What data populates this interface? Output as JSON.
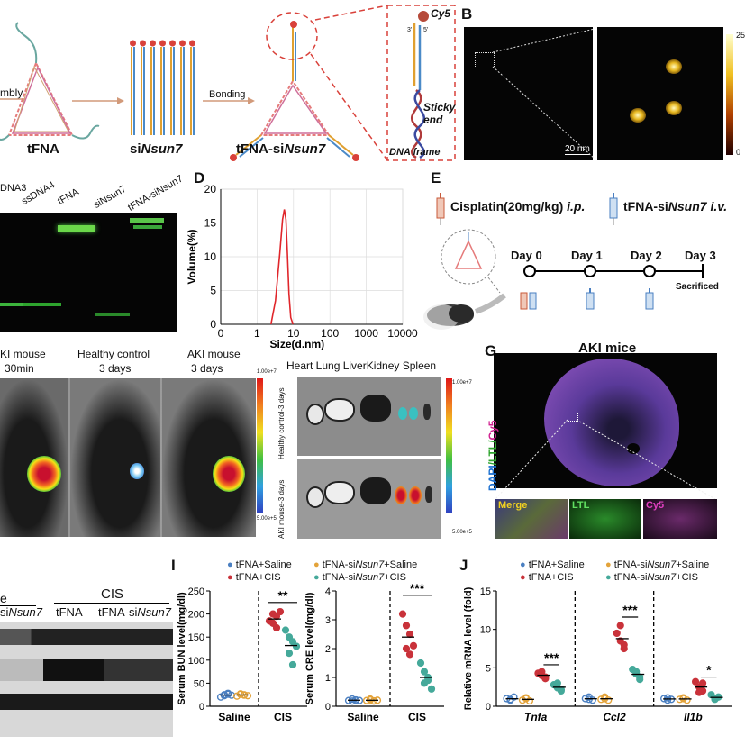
{
  "panelA": {
    "assembly_fragment": "mbly",
    "tfna": "tFNA",
    "sinsun7_prefix": "si",
    "sinsun7_gene": "Nsun7",
    "bonding": "Bonding",
    "conj_prefix": "tFNA-si",
    "conj_gene": "Nsun7",
    "cy5": "Cy5",
    "end5": "5'",
    "end3": "3'",
    "sticky_end": "Sticky\nend",
    "dna_frame": "DNA frame"
  },
  "panelB": {
    "label": "B",
    "scale_bar": "20 nm",
    "colorbar_max": "25",
    "colorbar_min": "0"
  },
  "panelC": {
    "lanes": [
      "DNA3",
      "ssDNA4",
      "tFNA",
      "siNsun7",
      "tFNA-siNsun7"
    ]
  },
  "panelD": {
    "label": "D"
  },
  "panelE": {
    "label": "E",
    "cisplatin": "Cisplatin(20mg/kg) ",
    "ip": "i.p.",
    "treatment_prefix": "tFNA-si",
    "treatment_gene": "Nsun7",
    "iv": " i.v.",
    "days": [
      "Day 0",
      "Day 1",
      "Day 2",
      "Day 3"
    ],
    "sacrificed": "Sacrificed"
  },
  "panelF": {
    "col1_line1": "KI mouse",
    "col1_line2": "30min",
    "col2_line1": "Healthy control",
    "col2_line2": "3 days",
    "col3_line1": "AKI mouse",
    "col3_line2": "3 days",
    "organs": "Heart  Lung  LiverKidney Spleen",
    "row_healthy": "Healthy control-3 days",
    "row_aki": "AKI mouse-3 days",
    "cb_top_a": "1.00e+7",
    "cb_bot_a": "5.00e+5",
    "cb_top_b": "1.00e+7",
    "cb_bot_b": "5.00e+5"
  },
  "panelG": {
    "label": "G",
    "title": "AKI mice",
    "side_dapi": "DAPI",
    "side_ltl": "/LTL/",
    "side_cy5": "Cy5",
    "insets": [
      "Merge",
      "LTL",
      "Cy5"
    ]
  },
  "panelH": {
    "group_fragment": "e",
    "group_cis": "CIS",
    "sub_fragment_prefix": "si",
    "sub_fragment_gene": "Nsun7",
    "sub_tfna": "tFNA",
    "sub_conj_prefix": "tFNA-si",
    "sub_conj_gene": "Nsun7"
  },
  "legend": {
    "a": "tFNA+Saline",
    "b_prefix": "tFNA-si",
    "b_gene": "Nsun7",
    "b_suffix": "+Saline",
    "c": "tFNA+CIS",
    "d_prefix": "tFNA-si",
    "d_gene": "Nsun7",
    "d_suffix": "+CIS",
    "colors": {
      "a": "#4a7fc1",
      "b": "#e3a33a",
      "c": "#c9323a",
      "d": "#45a99a"
    }
  },
  "panelI": {
    "label": "I",
    "bun_ylabel": "Serum BUN level(mg/dl)",
    "cre_ylabel": "Serum CRE level(mg/dl)",
    "x_saline": "Saline",
    "x_cis": "CIS",
    "sig_bun": "**",
    "sig_cre": "***"
  },
  "panelJ": {
    "label": "J",
    "ylabel": "Relative mRNA level (fold)",
    "genes": [
      "Tnfa",
      "Ccl2",
      "Il1b"
    ],
    "sig": [
      "***",
      "***",
      "*"
    ]
  },
  "chart_data": [
    {
      "type": "line",
      "xlabel": "Size(d.nm)",
      "ylabel": "Volume(%)",
      "x_scale": "log",
      "xlim": [
        0.1,
        10000
      ],
      "ylim": [
        0,
        20
      ],
      "x_ticks": [
        "0",
        "1",
        "10",
        "100",
        "1000",
        "10000"
      ],
      "y_ticks": [
        "0",
        "5",
        "10",
        "15",
        "20"
      ],
      "grid": true,
      "x": [
        2.4,
        3.2,
        4.2,
        5.0,
        5.6,
        6.2,
        6.8,
        7.5,
        8.4,
        9.7
      ],
      "y": [
        0,
        3.5,
        10.5,
        15.5,
        17.0,
        15.5,
        10.5,
        4.5,
        1.0,
        0
      ]
    },
    {
      "type": "scatter",
      "ylabel": "Serum BUN level(mg/dl)",
      "ylim": [
        0,
        250
      ],
      "y_ticks": [
        "0",
        "50",
        "100",
        "150",
        "200",
        "250"
      ],
      "categories": [
        "Saline",
        "CIS"
      ],
      "series": [
        {
          "name": "tFNA+Saline",
          "values": [
            [
              20,
              25,
              28,
              23,
              26,
              24
            ]
          ]
        },
        {
          "name": "tFNA-siNsun7+Saline",
          "values": [
            [
              22,
              26,
              25,
              27,
              24,
              23
            ]
          ]
        },
        {
          "name": "tFNA+CIS",
          "values": [
            [
              185,
              200,
              195,
              180,
              170,
              205
            ]
          ]
        },
        {
          "name": "tFNA-siNsun7+CIS",
          "values": [
            [
              165,
              150,
              140,
              115,
              90,
              130
            ]
          ]
        }
      ],
      "significance": "**"
    },
    {
      "type": "scatter",
      "ylabel": "Serum CRE level(mg/dl)",
      "ylim": [
        0,
        4
      ],
      "y_ticks": [
        "0",
        "1",
        "2",
        "3",
        "4"
      ],
      "categories": [
        "Saline",
        "CIS"
      ],
      "series": [
        {
          "name": "tFNA+Saline",
          "values": [
            [
              0.2,
              0.25,
              0.22,
              0.18,
              0.21,
              0.2
            ]
          ]
        },
        {
          "name": "tFNA-siNsun7+Saline",
          "values": [
            [
              0.2,
              0.22,
              0.18,
              0.25,
              0.19,
              0.21
            ]
          ]
        },
        {
          "name": "tFNA+CIS",
          "values": [
            [
              3.2,
              2.8,
              2.5,
              2.0,
              1.8,
              2.1
            ]
          ]
        },
        {
          "name": "tFNA-siNsun7+CIS",
          "values": [
            [
              1.5,
              1.2,
              0.9,
              0.8,
              1.0,
              0.6
            ]
          ]
        }
      ],
      "significance": "***"
    },
    {
      "type": "scatter",
      "ylabel": "Relative mRNA level (fold)",
      "ylim": [
        0,
        15
      ],
      "y_ticks": [
        "0",
        "5",
        "10",
        "15"
      ],
      "categories": [
        "Tnfa",
        "Ccl2",
        "Il1b"
      ],
      "series": [
        {
          "name": "tFNA+Saline",
          "values": [
            [
              1.0,
              0.8,
              1.2,
              0.9
            ],
            [
              1.0,
              1.2,
              0.8,
              0.9
            ],
            [
              1.0,
              1.1,
              0.9,
              0.8
            ]
          ]
        },
        {
          "name": "tFNA-siNsun7+Saline",
          "values": [
            [
              0.8,
              1.0,
              0.7,
              1.1
            ],
            [
              0.9,
              1.0,
              0.8,
              1.2
            ],
            [
              0.9,
              1.1,
              0.8,
              1.0
            ]
          ]
        },
        {
          "name": "tFNA+CIS",
          "values": [
            [
              4.3,
              4.0,
              3.8,
              4.5,
              3.6
            ],
            [
              9.5,
              8.5,
              8.0,
              10.5,
              7.5
            ],
            [
              3.2,
              2.5,
              2.0,
              1.8,
              3.0
            ]
          ]
        },
        {
          "name": "tFNA-siNsun7+CIS",
          "values": [
            [
              2.8,
              2.4,
              2.0,
              3.0,
              2.2
            ],
            [
              4.8,
              4.2,
              3.8,
              4.5,
              3.5
            ],
            [
              1.5,
              1.0,
              1.2,
              0.9
            ]
          ]
        }
      ],
      "significance": [
        "***",
        "***",
        "*"
      ]
    }
  ]
}
